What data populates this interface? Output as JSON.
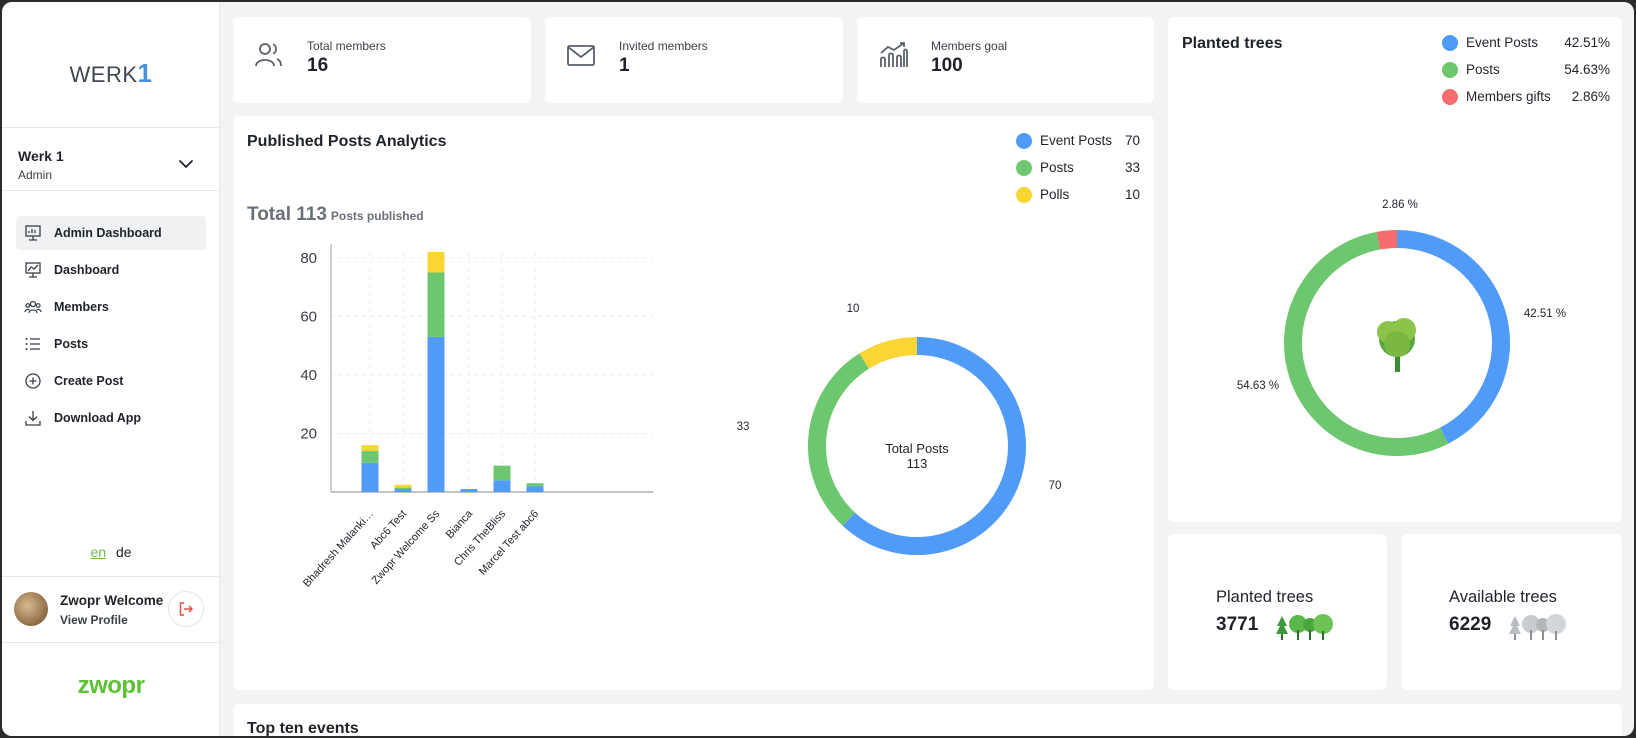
{
  "sidebar": {
    "logo_text": "WERK",
    "logo_num": "1",
    "org_name": "Werk 1",
    "org_role": "Admin",
    "nav": [
      {
        "label": "Admin Dashboard",
        "icon": "presentation-icon"
      },
      {
        "label": "Dashboard",
        "icon": "chart-board-icon"
      },
      {
        "label": "Members",
        "icon": "members-icon"
      },
      {
        "label": "Posts",
        "icon": "list-icon"
      },
      {
        "label": "Create Post",
        "icon": "plus-circle-icon"
      },
      {
        "label": "Download App",
        "icon": "download-icon"
      }
    ],
    "lang_en": "en",
    "lang_de": "de",
    "profile_name": "Zwopr Welcome",
    "profile_link": "View Profile",
    "brand": "zwopr"
  },
  "stats": {
    "total_members_label": "Total members",
    "total_members_value": "16",
    "invited_members_label": "Invited members",
    "invited_members_value": "1",
    "members_goal_label": "Members goal",
    "members_goal_value": "100"
  },
  "posts_card": {
    "title": "Published Posts Analytics",
    "total_prefix": "Total 113",
    "total_suffix": "Posts published",
    "legend": [
      {
        "label": "Event Posts",
        "value": "70",
        "color": "#4f9bf7"
      },
      {
        "label": "Posts",
        "value": "33",
        "color": "#6cc76e"
      },
      {
        "label": "Polls",
        "value": "10",
        "color": "#fbd534"
      }
    ],
    "donut_center_line1": "Total Posts",
    "donut_center_line2": "113"
  },
  "trees_card": {
    "title": "Planted trees",
    "legend": [
      {
        "label": "Event Posts",
        "value": "42.51%",
        "color": "#4f9bf7"
      },
      {
        "label": "Posts",
        "value": "54.63%",
        "color": "#6cc76e"
      },
      {
        "label": "Members gifts",
        "value": "2.86%",
        "color": "#f76c6c"
      }
    ],
    "label_gifts": "2.86 %",
    "label_event": "42.51 %",
    "label_posts": "54.63 %"
  },
  "tree_stats": {
    "planted_label": "Planted trees",
    "planted_value": "3771",
    "available_label": "Available trees",
    "available_value": "6229"
  },
  "bottom_card": {
    "title": "Top ten events"
  },
  "chart_data": [
    {
      "type": "bar",
      "stacked": true,
      "categories": [
        "Bhadresh Malanki…",
        "Abc6 Test",
        "Zwopr Welcome Ss",
        "Bianca",
        "Chris TheBliss",
        "Marcel Test abc6"
      ],
      "series": [
        {
          "name": "Event Posts",
          "values": [
            10,
            1,
            53,
            1,
            4,
            2
          ],
          "color": "#4f9bf7"
        },
        {
          "name": "Posts",
          "values": [
            4,
            0.5,
            22,
            0,
            5,
            1
          ],
          "color": "#6cc76e"
        },
        {
          "name": "Polls",
          "values": [
            2,
            1,
            7,
            0,
            0,
            0
          ],
          "color": "#fbd534"
        }
      ],
      "yticks": [
        "20",
        "40",
        "60",
        "80"
      ],
      "ylim": [
        0,
        82
      ],
      "grid": true
    },
    {
      "type": "pie",
      "donut": true,
      "labels": [
        "Event Posts",
        "Posts",
        "Polls"
      ],
      "values": [
        70,
        33,
        10
      ],
      "value_labels": [
        "70",
        "33",
        "10"
      ],
      "colors": [
        "#4f9bf7",
        "#6cc76e",
        "#fbd534"
      ]
    },
    {
      "type": "pie",
      "donut": true,
      "labels": [
        "Event Posts",
        "Posts",
        "Members gifts"
      ],
      "values": [
        42.51,
        54.63,
        2.86
      ],
      "colors": [
        "#4f9bf7",
        "#6cc76e",
        "#f76c6c"
      ]
    }
  ]
}
